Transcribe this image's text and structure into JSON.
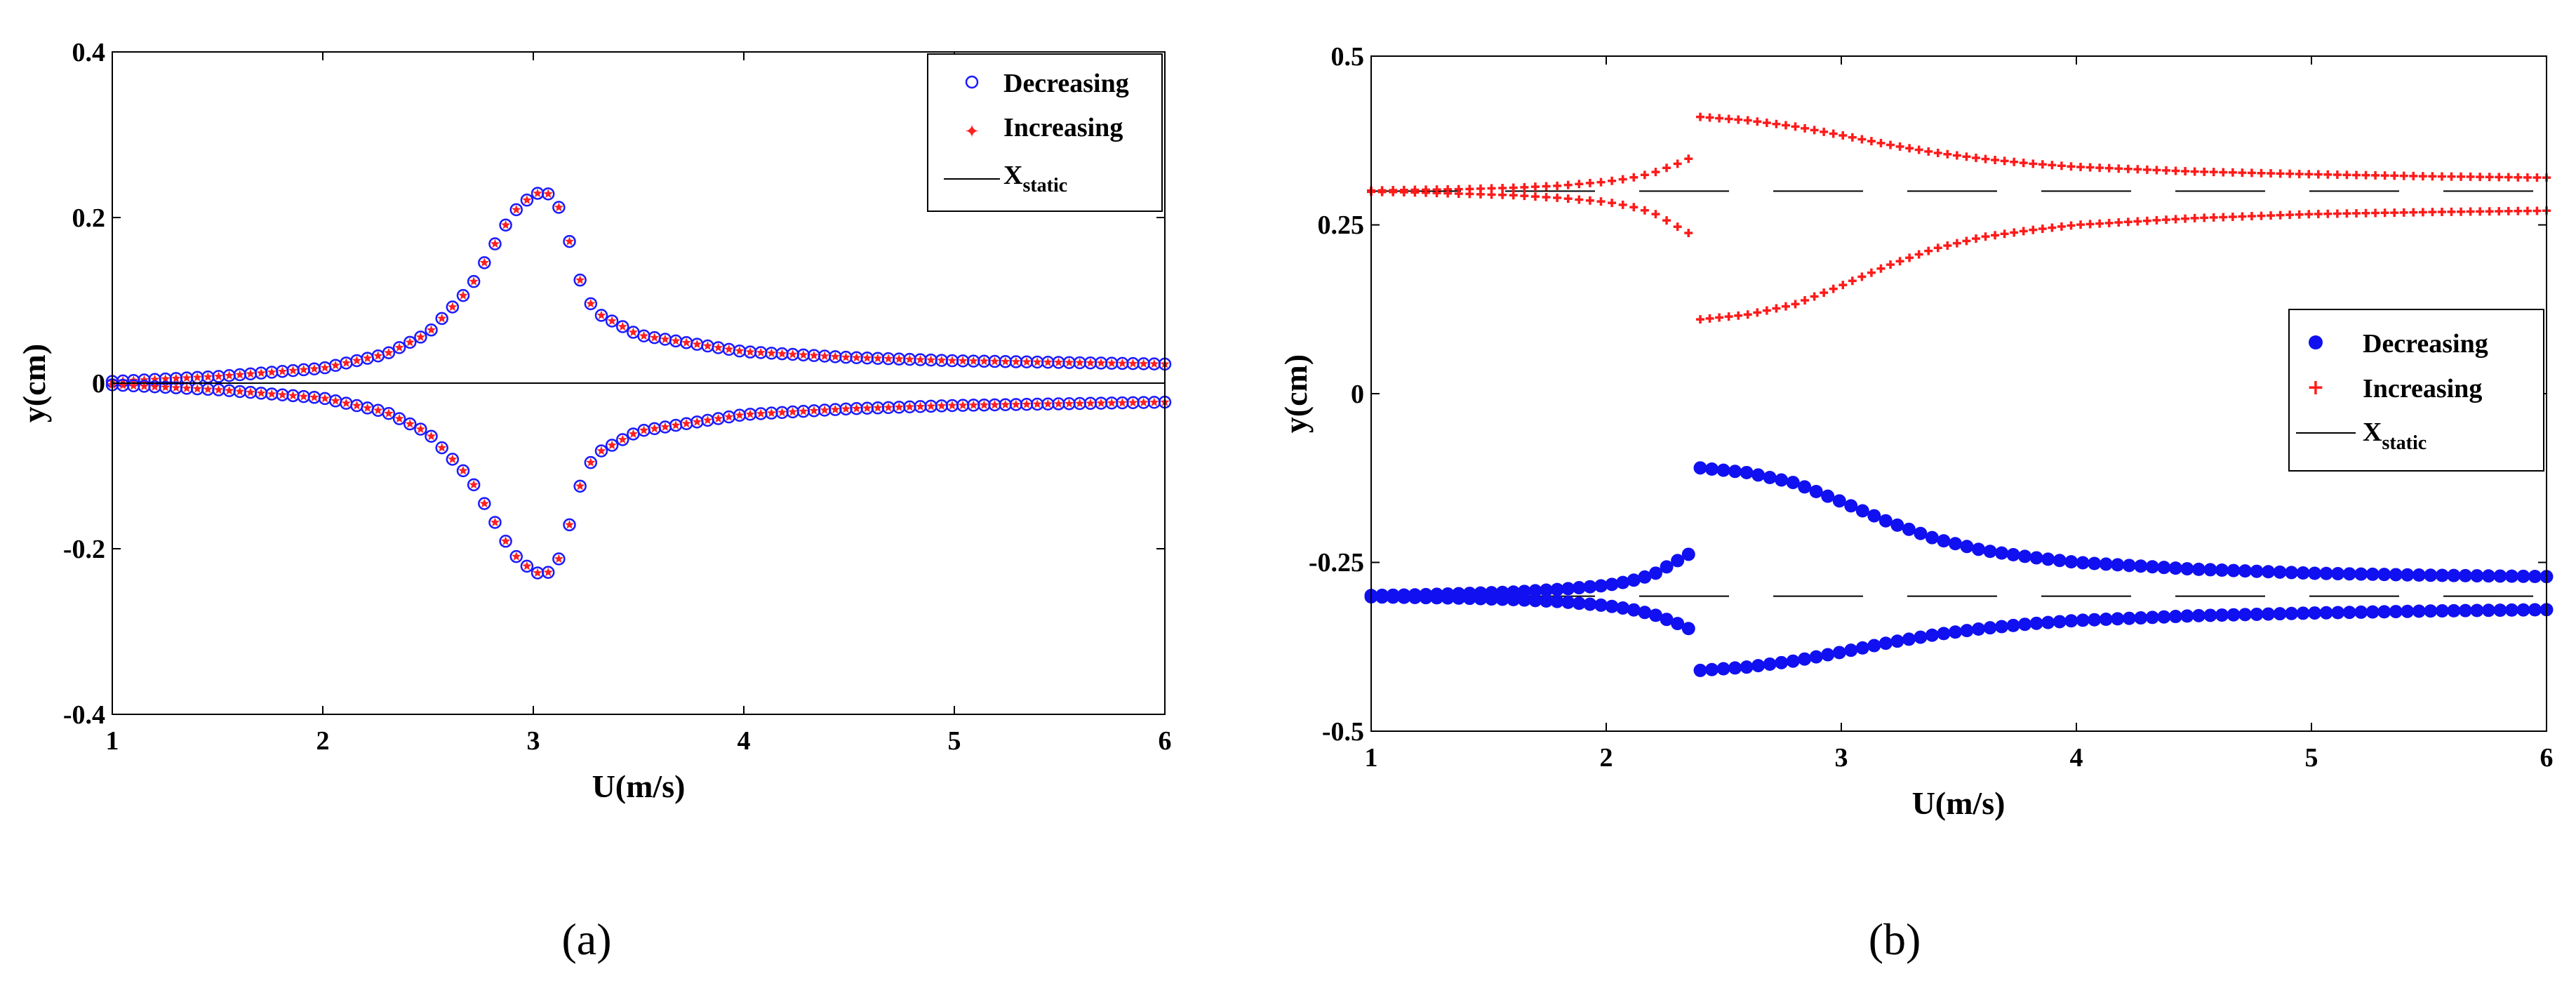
{
  "chart_data": [
    {
      "type": "scatter",
      "caption": "(a)",
      "xlabel": "U(m/s)",
      "ylabel": "y(cm)",
      "xlim": [
        1,
        6
      ],
      "ylim": [
        -0.4,
        0.4
      ],
      "x_ticks": [
        1,
        2,
        3,
        4,
        5,
        6
      ],
      "x_tick_labels": [
        "1",
        "2",
        "3",
        "4",
        "5",
        "6"
      ],
      "y_ticks": [
        -0.4,
        -0.2,
        0,
        0.2,
        0.4
      ],
      "y_tick_labels": [
        "-0.4",
        "-0.2",
        "0",
        "0.2",
        "0.4"
      ],
      "legend": {
        "position": "top-right",
        "entries": [
          {
            "label": "Decreasing",
            "marker": "circle"
          },
          {
            "label": "Increasing",
            "marker": "star"
          },
          {
            "label_main": "X",
            "label_sub": "static",
            "marker": "line"
          }
        ]
      },
      "curve_x": [
        1.0,
        1.5,
        2.0,
        2.3,
        2.5,
        2.7,
        2.8,
        2.9,
        3.0,
        3.05,
        3.1,
        3.15,
        3.2,
        3.25,
        3.3,
        3.5,
        4.0,
        4.5,
        5.0,
        5.5,
        6.0
      ],
      "curve_y": [
        0.002,
        0.008,
        0.018,
        0.035,
        0.06,
        0.115,
        0.16,
        0.205,
        0.228,
        0.231,
        0.225,
        0.195,
        0.14,
        0.105,
        0.085,
        0.058,
        0.038,
        0.031,
        0.027,
        0.025,
        0.023
      ],
      "series": [
        {
          "name": "Decreasing",
          "marker": "circle",
          "color": "#1a1aff",
          "x_start": 1.0,
          "x_end": 6.0,
          "count": 100,
          "branches": [
            "upper",
            "lower"
          ]
        },
        {
          "name": "Increasing",
          "marker": "star",
          "color": "#ff2020",
          "x_start": 1.0,
          "x_end": 6.0,
          "count": 100,
          "branches": [
            "upper",
            "lower"
          ]
        },
        {
          "name": "X_static",
          "type": "line",
          "y": 0,
          "color": "#000000",
          "style": "solid"
        }
      ]
    },
    {
      "type": "scatter",
      "caption": "(b)",
      "xlabel": "U(m/s)",
      "ylabel": "y(cm)",
      "xlim": [
        1,
        6
      ],
      "ylim": [
        -0.5,
        0.5
      ],
      "x_ticks": [
        1,
        2,
        3,
        4,
        5,
        6
      ],
      "x_tick_labels": [
        "1",
        "2",
        "3",
        "4",
        "5",
        "6"
      ],
      "y_ticks": [
        -0.5,
        -0.25,
        0,
        0.25,
        0.5
      ],
      "y_tick_labels": [
        "-0.5",
        "-0.25",
        "0",
        "0.25",
        "0.5"
      ],
      "legend": {
        "position": "center-right",
        "entries": [
          {
            "label": "Decreasing",
            "marker": "dot"
          },
          {
            "label": "Increasing",
            "marker": "plus"
          },
          {
            "label_main": "X",
            "label_sub": "static",
            "marker": "line"
          }
        ]
      },
      "static_level": 0.3,
      "segment_pre": {
        "x": [
          1.0,
          1.2,
          1.4,
          1.6,
          1.8,
          2.0,
          2.1,
          2.2,
          2.3,
          2.35
        ],
        "upper_dev": [
          0.001,
          0.002,
          0.003,
          0.005,
          0.008,
          0.014,
          0.019,
          0.027,
          0.04,
          0.048
        ],
        "lower_dev": [
          -0.001,
          -0.002,
          -0.004,
          -0.006,
          -0.01,
          -0.016,
          -0.022,
          -0.032,
          -0.052,
          -0.062
        ]
      },
      "segment_post": {
        "x": [
          2.4,
          2.6,
          2.8,
          3.0,
          3.2,
          3.4,
          3.6,
          3.8,
          4.0,
          4.5,
          5.0,
          5.5,
          6.0
        ],
        "upper_dev": [
          0.11,
          0.105,
          0.096,
          0.083,
          0.069,
          0.057,
          0.048,
          0.041,
          0.036,
          0.029,
          0.025,
          0.022,
          0.02
        ],
        "lower_dev": [
          -0.19,
          -0.183,
          -0.168,
          -0.14,
          -0.11,
          -0.085,
          -0.068,
          -0.058,
          -0.05,
          -0.04,
          -0.034,
          -0.031,
          -0.029
        ]
      },
      "series": [
        {
          "name": "Decreasing",
          "marker": "dot",
          "color": "#1010f0",
          "sign": -1,
          "pre_count": 30,
          "post_count": 74
        },
        {
          "name": "Increasing",
          "marker": "plus",
          "color": "#ff1a1a",
          "sign": 1,
          "pre_count": 30,
          "post_count": 90
        },
        {
          "name": "X_static",
          "type": "line",
          "y_levels": [
            0.3,
            -0.3
          ],
          "color": "#000000",
          "style": "dashed"
        }
      ]
    }
  ]
}
